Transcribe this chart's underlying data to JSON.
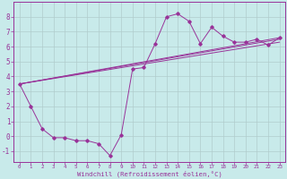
{
  "xlabel": "Windchill (Refroidissement éolien,°C)",
  "background_color": "#c8eaea",
  "grid_color": "#b0cccc",
  "line_color": "#993399",
  "xlim": [
    -0.5,
    23.5
  ],
  "ylim": [
    -1.7,
    9.0
  ],
  "xticks": [
    0,
    1,
    2,
    3,
    4,
    5,
    6,
    7,
    8,
    9,
    10,
    11,
    12,
    13,
    14,
    15,
    16,
    17,
    18,
    19,
    20,
    21,
    22,
    23
  ],
  "yticks": [
    -1,
    0,
    1,
    2,
    3,
    4,
    5,
    6,
    7,
    8
  ],
  "series": [
    [
      0,
      3.5
    ],
    [
      1,
      2.0
    ],
    [
      2,
      0.5
    ],
    [
      3,
      -0.1
    ],
    [
      4,
      -0.1
    ],
    [
      5,
      -0.3
    ],
    [
      6,
      -0.3
    ],
    [
      7,
      -0.5
    ],
    [
      8,
      -1.3
    ],
    [
      9,
      0.1
    ],
    [
      10,
      4.5
    ],
    [
      11,
      4.6
    ],
    [
      12,
      6.2
    ],
    [
      13,
      8.0
    ],
    [
      14,
      8.2
    ],
    [
      15,
      7.7
    ],
    [
      16,
      6.2
    ],
    [
      17,
      7.3
    ],
    [
      18,
      6.7
    ],
    [
      19,
      6.3
    ],
    [
      20,
      6.3
    ],
    [
      21,
      6.5
    ],
    [
      22,
      6.1
    ],
    [
      23,
      6.6
    ]
  ],
  "line2": [
    [
      0,
      3.5
    ],
    [
      23,
      6.5
    ]
  ],
  "line3": [
    [
      0,
      3.5
    ],
    [
      23,
      6.6
    ]
  ],
  "line4": [
    [
      0,
      3.5
    ],
    [
      23,
      6.3
    ]
  ]
}
